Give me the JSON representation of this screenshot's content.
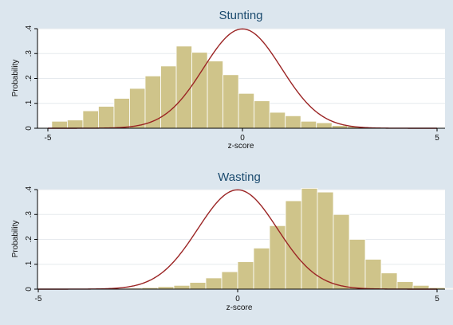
{
  "chart_data": [
    {
      "type": "bar",
      "title": "Stunting",
      "xlabel": "z-score",
      "ylabel": "Probability",
      "xlim": [
        -5,
        5
      ],
      "ylim": [
        0,
        0.4
      ],
      "xticks": [
        "-5",
        "0",
        "5"
      ],
      "yticks": [
        "0",
        ".1",
        ".2",
        ".3",
        ".4"
      ],
      "grid": true,
      "bar_color": "#cfc48a",
      "curve_color": "#9b2424",
      "histogram": {
        "bin_start": -4.9,
        "bin_width": 0.4,
        "values": [
          0.028,
          0.033,
          0.07,
          0.088,
          0.12,
          0.16,
          0.21,
          0.25,
          0.33,
          0.305,
          0.27,
          0.215,
          0.14,
          0.11,
          0.064,
          0.05,
          0.028,
          0.022,
          0.011,
          0.007,
          0.004,
          0.003,
          0.002,
          0.001,
          0.001
        ]
      },
      "curve": {
        "type": "normal",
        "mean": 0,
        "sd": 1
      }
    },
    {
      "type": "bar",
      "title": "Wasting",
      "xlabel": "z-score",
      "ylabel": "Probability",
      "xlim": [
        -5,
        5
      ],
      "ylim": [
        0,
        0.4
      ],
      "xticks": [
        "-5",
        "0",
        "5"
      ],
      "yticks": [
        "0",
        ".1",
        ".2",
        ".3",
        ".4"
      ],
      "grid": true,
      "bar_color": "#cfc48a",
      "curve_color": "#9b2424",
      "histogram": {
        "bin_start": -4.8,
        "bin_width": 0.4,
        "values": [
          0.001,
          0.001,
          0.002,
          0.002,
          0.003,
          0.004,
          0.006,
          0.01,
          0.015,
          0.027,
          0.045,
          0.07,
          0.11,
          0.165,
          0.255,
          0.355,
          0.405,
          0.39,
          0.3,
          0.2,
          0.12,
          0.065,
          0.03,
          0.015,
          0.006,
          0.003,
          0.002,
          0.002
        ]
      },
      "curve": {
        "type": "normal",
        "mean": 0,
        "sd": 1
      }
    }
  ]
}
